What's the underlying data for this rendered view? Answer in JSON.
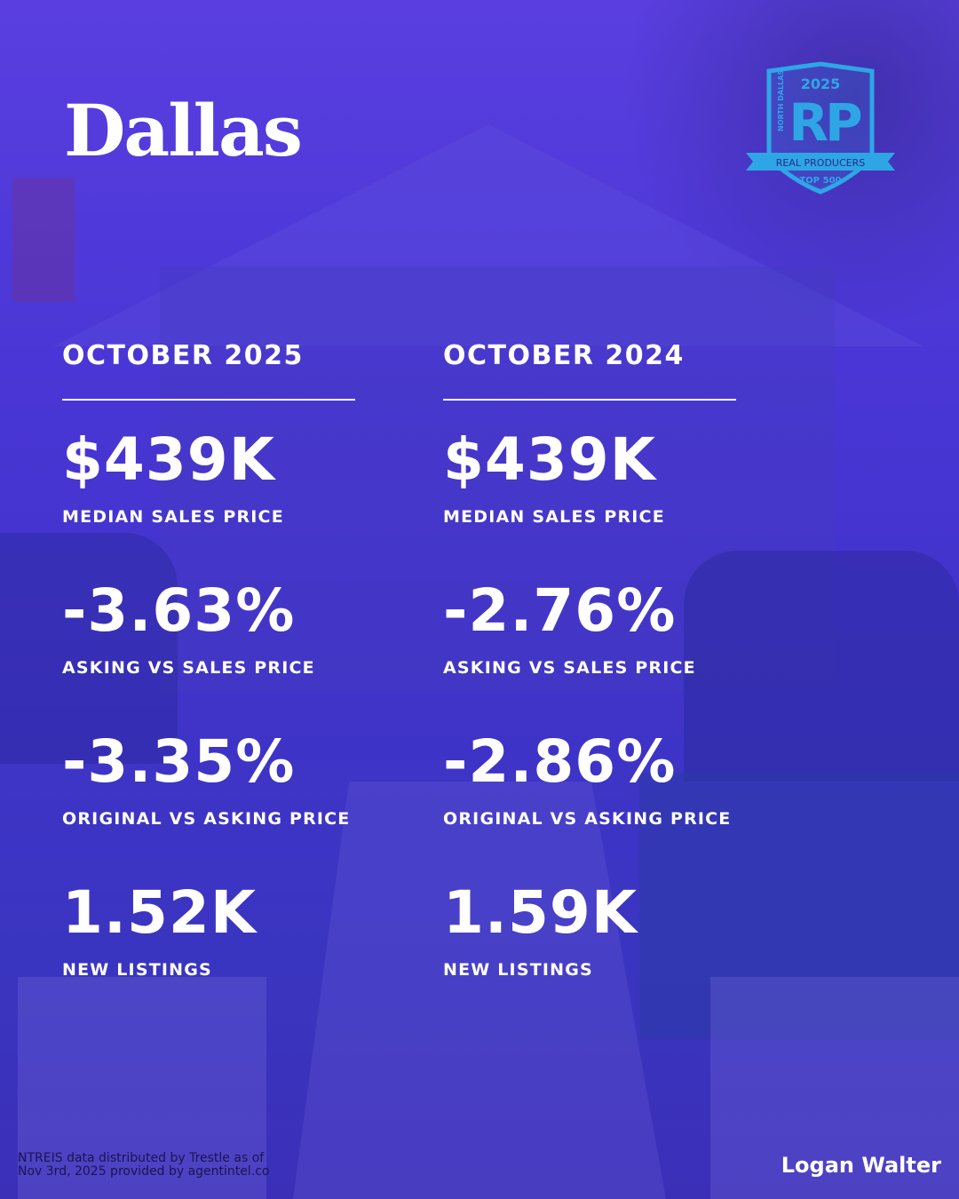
{
  "city": "Dallas",
  "badge": {
    "year": "2025",
    "region": "NORTH DALLAS",
    "mark": "RP",
    "ribbon": "REAL PRODUCERS",
    "tier": "TOP 500",
    "color": "#2ea6e6"
  },
  "columns": [
    {
      "period": "OCTOBER 2025",
      "stats": [
        {
          "value": "$439K",
          "label": "MEDIAN SALES PRICE"
        },
        {
          "value": "-3.63%",
          "label": "ASKING VS SALES PRICE"
        },
        {
          "value": "-3.35%",
          "label": "ORIGINAL VS ASKING PRICE"
        },
        {
          "value": "1.52K",
          "label": "NEW LISTINGS"
        }
      ]
    },
    {
      "period": "OCTOBER 2024",
      "stats": [
        {
          "value": "$439K",
          "label": "MEDIAN SALES PRICE"
        },
        {
          "value": "-2.76%",
          "label": "ASKING VS SALES PRICE"
        },
        {
          "value": "-2.86%",
          "label": "ORIGINAL VS ASKING PRICE"
        },
        {
          "value": "1.59K",
          "label": "NEW LISTINGS"
        }
      ]
    }
  ],
  "footer": {
    "source_line1": "NTREIS data distributed by Trestle as of",
    "source_line2": "Nov 3rd, 2025 provided by agentintel.co",
    "author": "Logan Walter"
  }
}
